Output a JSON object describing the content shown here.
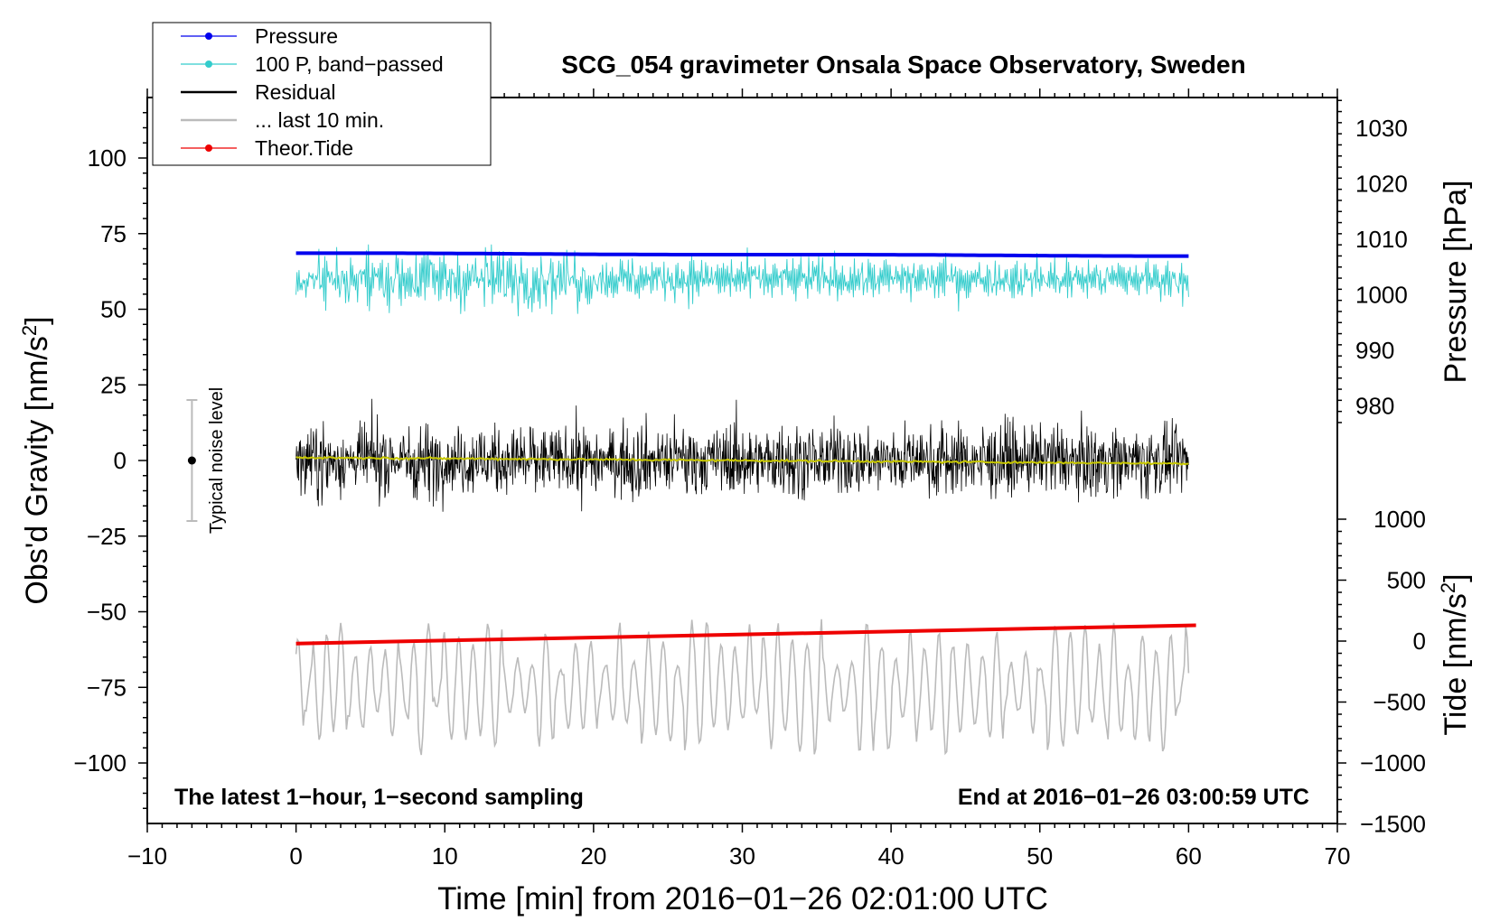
{
  "chart_data": {
    "type": "line",
    "title": "SCG_054 gravimeter Onsala Space Observatory, Sweden",
    "xlabel": "Time [min] from 2016−01−26 02:01:00 UTC",
    "ylabel_left": "Obs'd Gravity [nm/s",
    "ylabel_left_sup": "2",
    "ylabel_left_end": "]",
    "ylabel_right_top": "Pressure [hPa]",
    "ylabel_right_bottom": "Tide [nm/s",
    "ylabel_right_bottom_sup": "2",
    "ylabel_right_bottom_end": "]",
    "xlim": [
      -10,
      70
    ],
    "ylim": [
      -120,
      120
    ],
    "x_ticks": [
      "−10",
      "0",
      "10",
      "20",
      "30",
      "40",
      "50",
      "60",
      "70"
    ],
    "y_ticks": [
      "100",
      "75",
      "50",
      "25",
      "0",
      "−25",
      "−50",
      "−75",
      "−100"
    ],
    "pressure_ticks": [
      "1030",
      "1020",
      "1010",
      "1000",
      "990",
      "980"
    ],
    "tide_ticks": [
      "1000",
      "500",
      "0",
      "−500",
      "−1000",
      "−1500"
    ],
    "legend": [
      {
        "label": "Pressure",
        "color": "#0000ee",
        "marker": true
      },
      {
        "label": "100 P, band−passed",
        "color": "#33cccc",
        "marker": true
      },
      {
        "label": "Residual",
        "color": "#000000",
        "marker": false
      },
      {
        "label": "... last 10 min.",
        "color": "#bbbbbb",
        "marker": false
      },
      {
        "label": "Theor.Tide",
        "color": "#ee0000",
        "marker": true
      }
    ],
    "legend_position": "top-left",
    "annotations": {
      "bottom_left": "The latest 1−hour, 1−second sampling",
      "bottom_right": "End at 2016−01−26 03:00:59 UTC",
      "noise_label": "Typical noise level"
    },
    "noise_bar": {
      "x": -7,
      "center": 0,
      "half_range": 20
    },
    "series": [
      {
        "name": "Pressure",
        "color": "#0000ee",
        "unit": "hPa",
        "x_range": [
          0,
          60
        ],
        "start": 1007.5,
        "end": 1007.0
      },
      {
        "name": "100 P, band-passed",
        "color": "#33cccc",
        "unit": "nm/s2 (left axis)",
        "x_range": [
          0,
          60
        ],
        "center": 60,
        "amplitude": 8
      },
      {
        "name": "Residual",
        "color": "#000000",
        "unit": "nm/s2",
        "x_range": [
          0,
          60
        ],
        "center": 0,
        "amplitude": 14
      },
      {
        "name": "Residual smoothed",
        "color": "#c8c800",
        "unit": "nm/s2",
        "x_range": [
          0,
          60
        ],
        "start": 1,
        "end": -1
      },
      {
        "name": "... last 10 min.",
        "color": "#bbbbbb",
        "unit": "nm/s2 (left axis)",
        "x_range": [
          0,
          60
        ],
        "center": -75,
        "amplitude": 18
      },
      {
        "name": "Theor.Tide",
        "color": "#ee0000",
        "unit": "nm/s2",
        "x_range": [
          0,
          60.5
        ],
        "start": -20,
        "end": 130
      }
    ]
  }
}
